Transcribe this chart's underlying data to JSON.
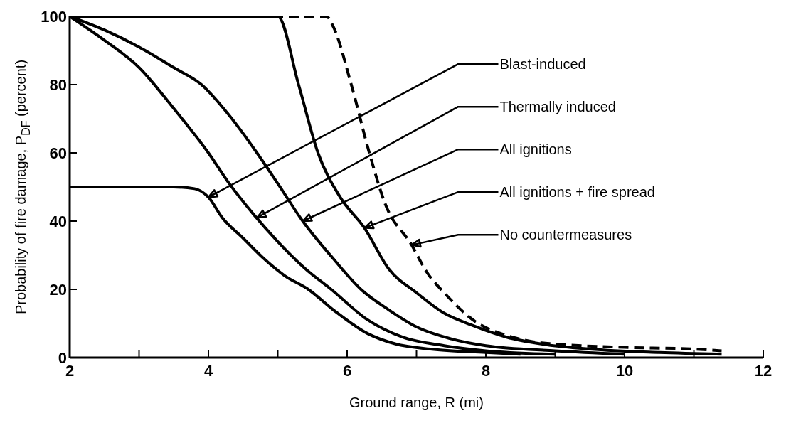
{
  "chart_data": {
    "type": "line",
    "xlabel": "Ground range, R (mi)",
    "ylabel": "Probability of fire damage, P$_{D}$$_{F}$ (percent)",
    "xlim": [
      2,
      12
    ],
    "xticks": [
      2,
      {
        "value": 3,
        "label": null
      },
      4,
      {
        "value": 5,
        "label": null
      },
      6,
      {
        "value": 7,
        "label": null
      },
      8,
      {
        "value": 9,
        "label": null
      },
      10,
      {
        "value": 11,
        "label": null
      },
      12
    ],
    "ylim": [
      0,
      100
    ],
    "yticks": [
      0,
      20,
      40,
      60,
      80,
      100
    ],
    "series": [
      {
        "color": "#000000",
        "line_style": "solid",
        "x": [
          2,
          3,
          3.5,
          3.8,
          4.0,
          4.2,
          4.5,
          4.8,
          5.1,
          5.44,
          5.8,
          6.3,
          6.7,
          7.2,
          8,
          8.5
        ],
        "values": [
          50,
          50,
          50,
          49.5,
          47,
          41,
          35,
          29,
          24,
          20,
          14,
          7,
          4,
          2.5,
          1.5,
          1
        ]
      },
      {
        "color": "#000000",
        "line_style": "solid",
        "x": [
          2,
          2.5,
          3,
          3.5,
          4,
          4.3,
          4.65,
          5.0,
          5.4,
          5.77,
          6.3,
          6.8,
          7.4,
          8,
          9
        ],
        "values": [
          100,
          93,
          85,
          73,
          60,
          51,
          42,
          34,
          26,
          20,
          11,
          6,
          3.5,
          2,
          1
        ]
      },
      {
        "color": "#000000",
        "line_style": "solid",
        "x": [
          2,
          2.5,
          3,
          3.5,
          3.9,
          4.3,
          4.7,
          5.0,
          5.36,
          5.8,
          6.2,
          6.6,
          7.0,
          7.5,
          8,
          9,
          10
        ],
        "values": [
          100,
          96,
          91,
          85,
          80,
          71,
          60,
          51,
          40,
          29,
          20,
          14,
          9,
          5.5,
          3.5,
          2,
          1
        ]
      },
      {
        "color": "#000000",
        "line_style": "solid",
        "x": [
          2,
          5.0,
          5.3,
          5.58,
          5.9,
          6.25,
          6.6,
          7.0,
          7.4,
          7.8,
          8.3,
          8.8,
          9.5,
          10.5,
          11.4
        ],
        "values": [
          100,
          100,
          80,
          60,
          47,
          38,
          26,
          19,
          13,
          9.5,
          6,
          4,
          2.5,
          1.5,
          1
        ]
      },
      {
        "color": "#000000",
        "line_style": "dashed",
        "x": [
          2,
          5.7,
          5.8,
          6.06,
          6.32,
          6.55,
          6.93,
          7.15,
          7.4,
          7.86,
          8.3,
          8.67,
          9,
          10,
          11,
          11.4
        ],
        "values": [
          100,
          100,
          97,
          80,
          60,
          45,
          33,
          25,
          19,
          10.4,
          6.5,
          4.7,
          4,
          3,
          2.5,
          2
        ]
      }
    ],
    "annotations": [
      {
        "text": "Blast-induced",
        "x": 4.0,
        "y": 47
      },
      {
        "text": "Thermally induced",
        "x": 4.7,
        "y": 41
      },
      {
        "text": "All ignitions",
        "x": 5.36,
        "y": 40
      },
      {
        "text": "All ignitions + fire spread",
        "x": 6.25,
        "y": 38
      },
      {
        "text": "No countermeasures",
        "x": 6.93,
        "y": 33
      }
    ]
  }
}
